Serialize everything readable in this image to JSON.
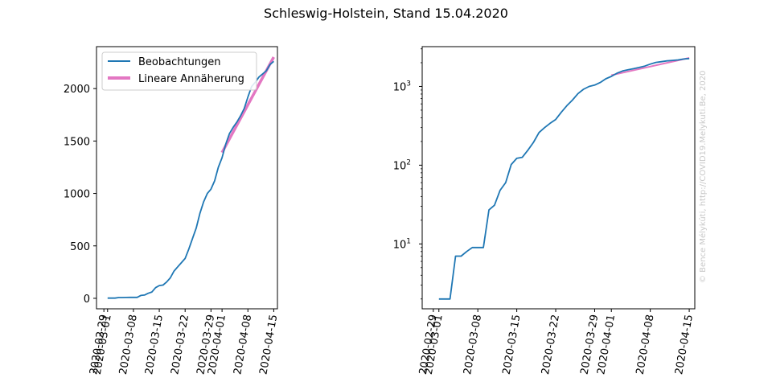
{
  "figure_title": "Schleswig-Holstein, Stand 15.04.2020",
  "watermark": "© Bence Mélykúti, http://COVID19.Melykuti.Be, 2020",
  "colors": {
    "observations": "#1f77b4",
    "fit": "#e377c2",
    "axis": "#000000",
    "watermark": "#c8c8c8"
  },
  "chart_data": [
    {
      "type": "line",
      "y_scale": "linear",
      "xlim": [
        "2020-02-27",
        "2020-04-16"
      ],
      "ylim": [
        -100,
        2400
      ],
      "grid": false,
      "legend_position": "top-left",
      "x_ticks": [
        "2020-02-29",
        "2020-03-01",
        "2020-03-08",
        "2020-03-15",
        "2020-03-22",
        "2020-03-29",
        "2020-04-01",
        "2020-04-08",
        "2020-04-15"
      ],
      "y_ticks": [
        {
          "value": 0,
          "label": "0"
        },
        {
          "value": 500,
          "label": "500"
        },
        {
          "value": 1000,
          "label": "1000"
        },
        {
          "value": 1500,
          "label": "1500"
        },
        {
          "value": 2000,
          "label": "2000"
        }
      ],
      "series": [
        {
          "name": "Beobachtungen",
          "x": [
            "2020-03-01",
            "2020-03-03",
            "2020-03-04",
            "2020-03-05",
            "2020-03-06",
            "2020-03-07",
            "2020-03-08",
            "2020-03-09",
            "2020-03-10",
            "2020-03-11",
            "2020-03-12",
            "2020-03-13",
            "2020-03-14",
            "2020-03-15",
            "2020-03-16",
            "2020-03-17",
            "2020-03-18",
            "2020-03-19",
            "2020-03-20",
            "2020-03-21",
            "2020-03-22",
            "2020-03-23",
            "2020-03-24",
            "2020-03-25",
            "2020-03-26",
            "2020-03-27",
            "2020-03-28",
            "2020-03-29",
            "2020-03-30",
            "2020-03-31",
            "2020-04-01",
            "2020-04-02",
            "2020-04-03",
            "2020-04-04",
            "2020-04-05",
            "2020-04-06",
            "2020-04-07",
            "2020-04-08",
            "2020-04-09",
            "2020-04-10",
            "2020-04-11",
            "2020-04-12",
            "2020-04-13",
            "2020-04-14",
            "2020-04-15"
          ],
          "y": [
            2,
            2,
            7,
            7,
            8,
            9,
            9,
            9,
            27,
            31,
            48,
            60,
            102,
            122,
            126,
            155,
            195,
            260,
            300,
            340,
            380,
            470,
            570,
            670,
            810,
            920,
            1000,
            1040,
            1120,
            1250,
            1340,
            1470,
            1570,
            1630,
            1680,
            1740,
            1810,
            1920,
            2020,
            2060,
            2110,
            2140,
            2170,
            2230,
            2260
          ]
        },
        {
          "name": "Lineare Annäherung",
          "x": [
            "2020-04-01",
            "2020-04-15"
          ],
          "y": [
            1390,
            2300
          ]
        }
      ]
    },
    {
      "type": "line",
      "y_scale": "log",
      "xlim": [
        "2020-02-27",
        "2020-04-16"
      ],
      "ylim": [
        1.5,
        3200
      ],
      "grid": false,
      "x_ticks": [
        "2020-02-29",
        "2020-03-01",
        "2020-03-08",
        "2020-03-15",
        "2020-03-22",
        "2020-03-29",
        "2020-04-01",
        "2020-04-08",
        "2020-04-15"
      ],
      "y_ticks": [
        {
          "value": 10,
          "label": "10",
          "exp": "1"
        },
        {
          "value": 100,
          "label": "10",
          "exp": "2"
        },
        {
          "value": 1000,
          "label": "10",
          "exp": "3"
        }
      ],
      "series": [
        {
          "name": "Beobachtungen",
          "x": [
            "2020-03-01",
            "2020-03-03",
            "2020-03-04",
            "2020-03-05",
            "2020-03-06",
            "2020-03-07",
            "2020-03-08",
            "2020-03-09",
            "2020-03-10",
            "2020-03-11",
            "2020-03-12",
            "2020-03-13",
            "2020-03-14",
            "2020-03-15",
            "2020-03-16",
            "2020-03-17",
            "2020-03-18",
            "2020-03-19",
            "2020-03-20",
            "2020-03-21",
            "2020-03-22",
            "2020-03-23",
            "2020-03-24",
            "2020-03-25",
            "2020-03-26",
            "2020-03-27",
            "2020-03-28",
            "2020-03-29",
            "2020-03-30",
            "2020-03-31",
            "2020-04-01",
            "2020-04-02",
            "2020-04-03",
            "2020-04-04",
            "2020-04-05",
            "2020-04-06",
            "2020-04-07",
            "2020-04-08",
            "2020-04-09",
            "2020-04-10",
            "2020-04-11",
            "2020-04-12",
            "2020-04-13",
            "2020-04-14",
            "2020-04-15"
          ],
          "y": [
            2,
            2,
            7,
            7,
            8,
            9,
            9,
            9,
            27,
            31,
            48,
            60,
            102,
            122,
            126,
            155,
            195,
            260,
            300,
            340,
            380,
            470,
            570,
            670,
            810,
            920,
            1000,
            1040,
            1120,
            1250,
            1340,
            1470,
            1570,
            1630,
            1680,
            1740,
            1810,
            1920,
            2020,
            2060,
            2110,
            2140,
            2170,
            2230,
            2260
          ]
        },
        {
          "name": "Lineare Annäherung",
          "x": [
            "2020-04-01",
            "2020-04-15"
          ],
          "y": [
            1390,
            2300
          ]
        }
      ]
    }
  ]
}
